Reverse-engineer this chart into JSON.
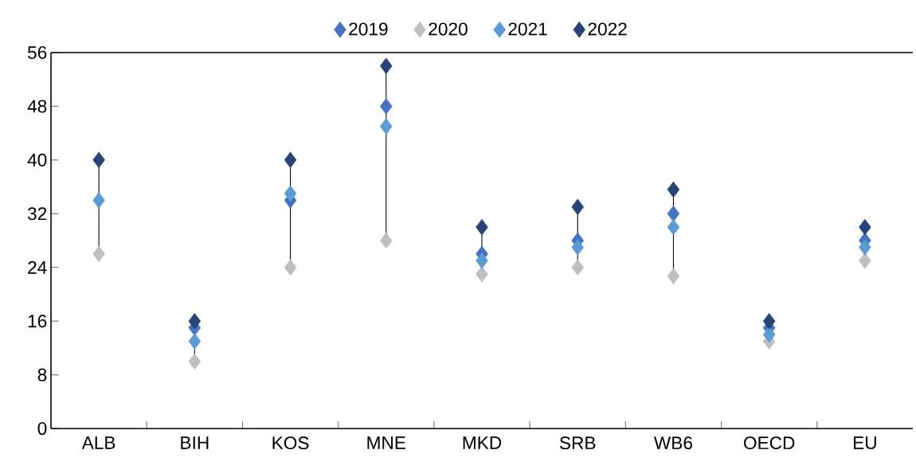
{
  "chart_data": {
    "type": "scatter",
    "categories": [
      "ALB",
      "BIH",
      "KOS",
      "MNE",
      "MKD",
      "SRB",
      "WB6",
      "OECD",
      "EU"
    ],
    "series": [
      {
        "name": "2019",
        "color": "#4472c4",
        "values": [
          null,
          15,
          34,
          48,
          26,
          28,
          32,
          15,
          28
        ]
      },
      {
        "name": "2020",
        "color": "#bfbfbf",
        "values": [
          26,
          10,
          24,
          28,
          23,
          24,
          22.7,
          13,
          25
        ]
      },
      {
        "name": "2021",
        "color": "#5b9bd5",
        "values": [
          34,
          13,
          35,
          45,
          25,
          27,
          30,
          14,
          27
        ]
      },
      {
        "name": "2022",
        "color": "#264478",
        "values": [
          40,
          16,
          40,
          54,
          30,
          33,
          35.6,
          16,
          30
        ]
      }
    ],
    "ylim": [
      0,
      56
    ],
    "yticks": [
      0,
      8,
      16,
      24,
      32,
      40,
      48,
      56
    ],
    "legend": "top",
    "marker": "diamond",
    "grid": false
  }
}
